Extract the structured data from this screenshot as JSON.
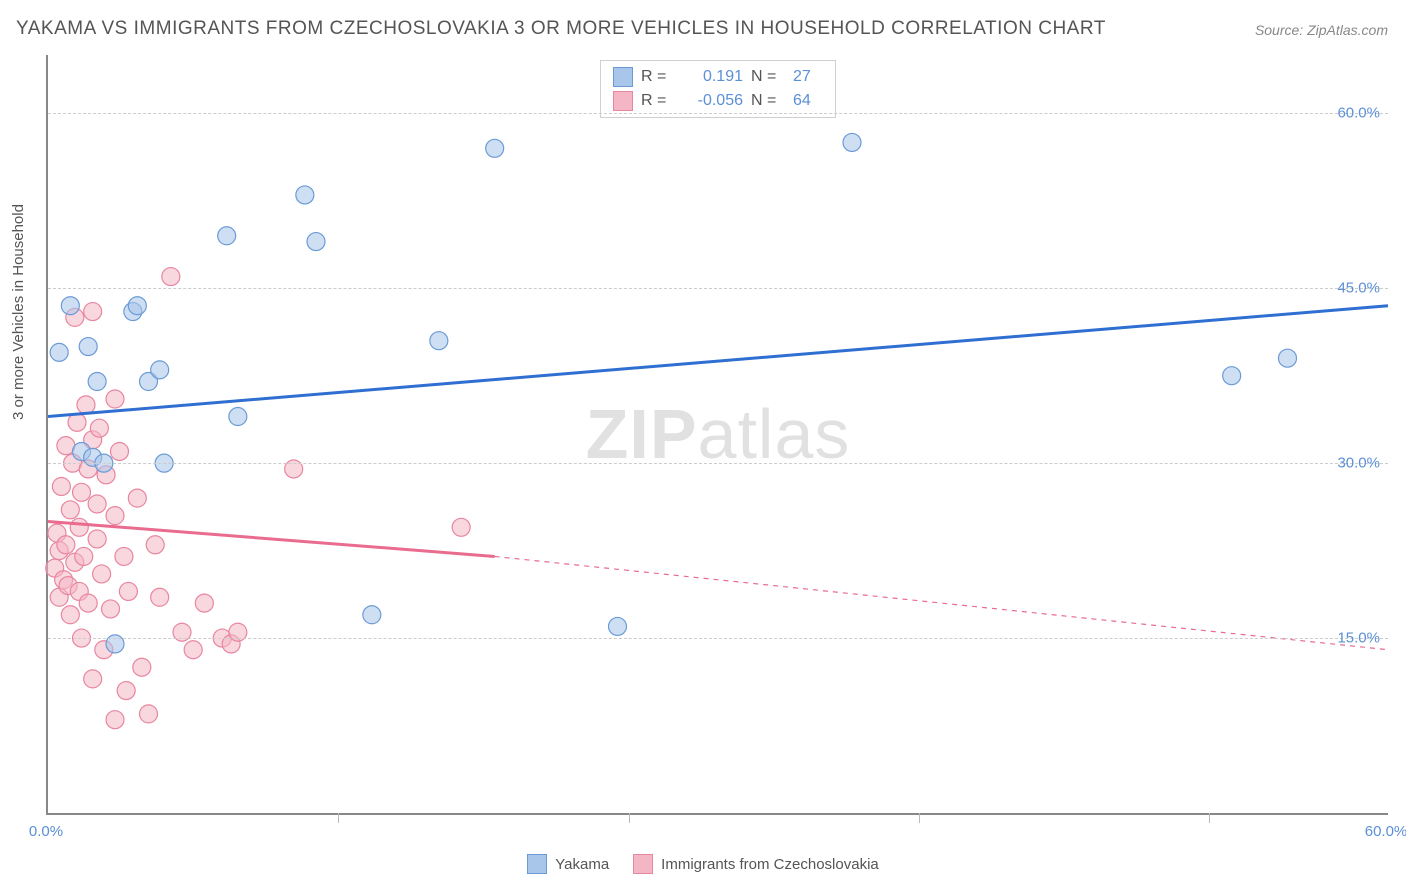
{
  "title": "YAKAMA VS IMMIGRANTS FROM CZECHOSLOVAKIA 3 OR MORE VEHICLES IN HOUSEHOLD CORRELATION CHART",
  "source": "Source: ZipAtlas.com",
  "y_axis_label": "3 or more Vehicles in Household",
  "watermark_a": "ZIP",
  "watermark_b": "atlas",
  "chart": {
    "type": "scatter",
    "xlim": [
      0,
      60
    ],
    "ylim": [
      0,
      65
    ],
    "x_ticks": [
      0,
      60
    ],
    "x_tick_labels": [
      "0.0%",
      "60.0%"
    ],
    "x_tick_minor": [
      13,
      26,
      39,
      52
    ],
    "y_ticks": [
      15,
      30,
      45,
      60
    ],
    "y_tick_labels": [
      "15.0%",
      "30.0%",
      "45.0%",
      "60.0%"
    ],
    "background_color": "#ffffff",
    "grid_color": "#cccccc",
    "axis_color": "#888888",
    "marker_radius": 9,
    "marker_opacity": 0.55,
    "line_width": 3
  },
  "series": {
    "yakama": {
      "label": "Yakama",
      "r_value": "0.191",
      "n_value": "27",
      "color_fill": "#a8c5ea",
      "color_stroke": "#6b9bd6",
      "line_color": "#2e6fd1",
      "trend": {
        "x1": 0,
        "y1": 34,
        "x2": 60,
        "y2": 43.5
      },
      "points": [
        [
          0.5,
          39.5
        ],
        [
          1.0,
          43.5
        ],
        [
          1.5,
          31.0
        ],
        [
          1.8,
          40.0
        ],
        [
          2.0,
          30.5
        ],
        [
          2.2,
          37.0
        ],
        [
          2.5,
          30.0
        ],
        [
          3.0,
          14.5
        ],
        [
          3.8,
          43.0
        ],
        [
          4.0,
          43.5
        ],
        [
          4.5,
          37.0
        ],
        [
          5.0,
          38.0
        ],
        [
          5.2,
          30.0
        ],
        [
          8.0,
          49.5
        ],
        [
          8.5,
          34.0
        ],
        [
          11.5,
          53.0
        ],
        [
          12.0,
          49.0
        ],
        [
          14.5,
          17.0
        ],
        [
          17.5,
          40.5
        ],
        [
          20.0,
          57.0
        ],
        [
          25.5,
          16.0
        ],
        [
          36.0,
          57.5
        ],
        [
          53.0,
          37.5
        ],
        [
          55.5,
          39.0
        ]
      ]
    },
    "czech": {
      "label": "Immigrants from Czechoslovakia",
      "r_value": "-0.056",
      "n_value": "64",
      "color_fill": "#f4b6c4",
      "color_stroke": "#e886a0",
      "line_color": "#e96b8e",
      "trend_solid": {
        "x1": 0,
        "y1": 25.0,
        "x2": 20,
        "y2": 22.0
      },
      "trend_dash": {
        "x1": 20,
        "y1": 22.0,
        "x2": 60,
        "y2": 14.0
      },
      "points": [
        [
          0.3,
          21.0
        ],
        [
          0.4,
          24.0
        ],
        [
          0.5,
          18.5
        ],
        [
          0.5,
          22.5
        ],
        [
          0.6,
          28.0
        ],
        [
          0.7,
          20.0
        ],
        [
          0.8,
          31.5
        ],
        [
          0.8,
          23.0
        ],
        [
          0.9,
          19.5
        ],
        [
          1.0,
          26.0
        ],
        [
          1.0,
          17.0
        ],
        [
          1.1,
          30.0
        ],
        [
          1.2,
          21.5
        ],
        [
          1.2,
          42.5
        ],
        [
          1.3,
          33.5
        ],
        [
          1.4,
          19.0
        ],
        [
          1.4,
          24.5
        ],
        [
          1.5,
          27.5
        ],
        [
          1.5,
          15.0
        ],
        [
          1.6,
          22.0
        ],
        [
          1.7,
          35.0
        ],
        [
          1.8,
          29.5
        ],
        [
          1.8,
          18.0
        ],
        [
          2.0,
          32.0
        ],
        [
          2.0,
          11.5
        ],
        [
          2.0,
          43.0
        ],
        [
          2.2,
          23.5
        ],
        [
          2.2,
          26.5
        ],
        [
          2.3,
          33.0
        ],
        [
          2.4,
          20.5
        ],
        [
          2.5,
          14.0
        ],
        [
          2.6,
          29.0
        ],
        [
          2.8,
          17.5
        ],
        [
          3.0,
          25.5
        ],
        [
          3.0,
          35.5
        ],
        [
          3.0,
          8.0
        ],
        [
          3.2,
          31.0
        ],
        [
          3.4,
          22.0
        ],
        [
          3.5,
          10.5
        ],
        [
          3.6,
          19.0
        ],
        [
          4.0,
          27.0
        ],
        [
          4.2,
          12.5
        ],
        [
          4.5,
          8.5
        ],
        [
          4.8,
          23.0
        ],
        [
          5.0,
          18.5
        ],
        [
          5.5,
          46.0
        ],
        [
          6.0,
          15.5
        ],
        [
          6.5,
          14.0
        ],
        [
          7.0,
          18.0
        ],
        [
          7.8,
          15.0
        ],
        [
          8.2,
          14.5
        ],
        [
          8.5,
          15.5
        ],
        [
          11.0,
          29.5
        ],
        [
          18.5,
          24.5
        ]
      ]
    }
  },
  "stats_box": {
    "r_label": "R =",
    "n_label": "N ="
  }
}
